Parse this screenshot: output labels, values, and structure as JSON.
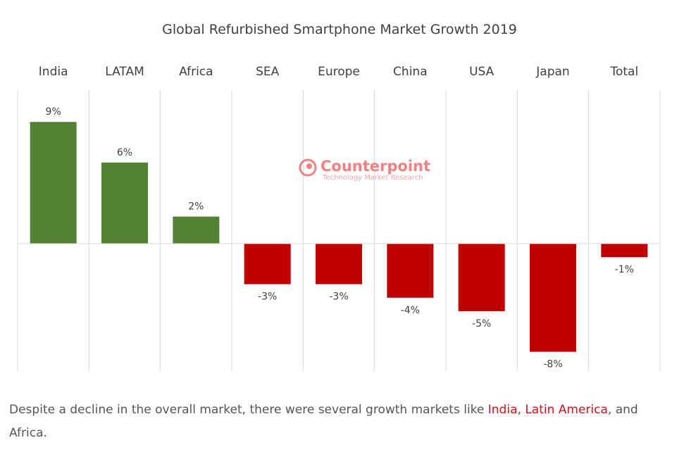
{
  "chart_data": {
    "type": "bar",
    "title": "Global Refurbished Smartphone Market Growth 2019",
    "categories": [
      "India",
      "LATAM",
      "Africa",
      "SEA",
      "Europe",
      "China",
      "USA",
      "Japan",
      "Total"
    ],
    "values": [
      9,
      6,
      2,
      -3,
      -3,
      -4,
      -5,
      -8,
      -1
    ],
    "data_labels": [
      "9%",
      "6%",
      "2%",
      "-3%",
      "-3%",
      "-4%",
      "-5%",
      "-8%",
      "-1%"
    ],
    "value_unit": "%",
    "category_axis_position": "top",
    "value_axis_visible": false,
    "grid": "vertical category separators",
    "colors": {
      "positive": "#538135",
      "negative": "#c00000"
    }
  },
  "watermark": {
    "name": "Counterpoint",
    "subtitle": "Technology Market Research",
    "logo_icon": "counterpoint-logo-icon",
    "color": "#ef6b6b"
  },
  "caption": {
    "before": "Despite a decline in the overall market, there were several growth markets like ",
    "link1": "India",
    "sep1": ", ",
    "link2": "Latin America",
    "sep2": ", and ",
    "tail": "Africa."
  }
}
